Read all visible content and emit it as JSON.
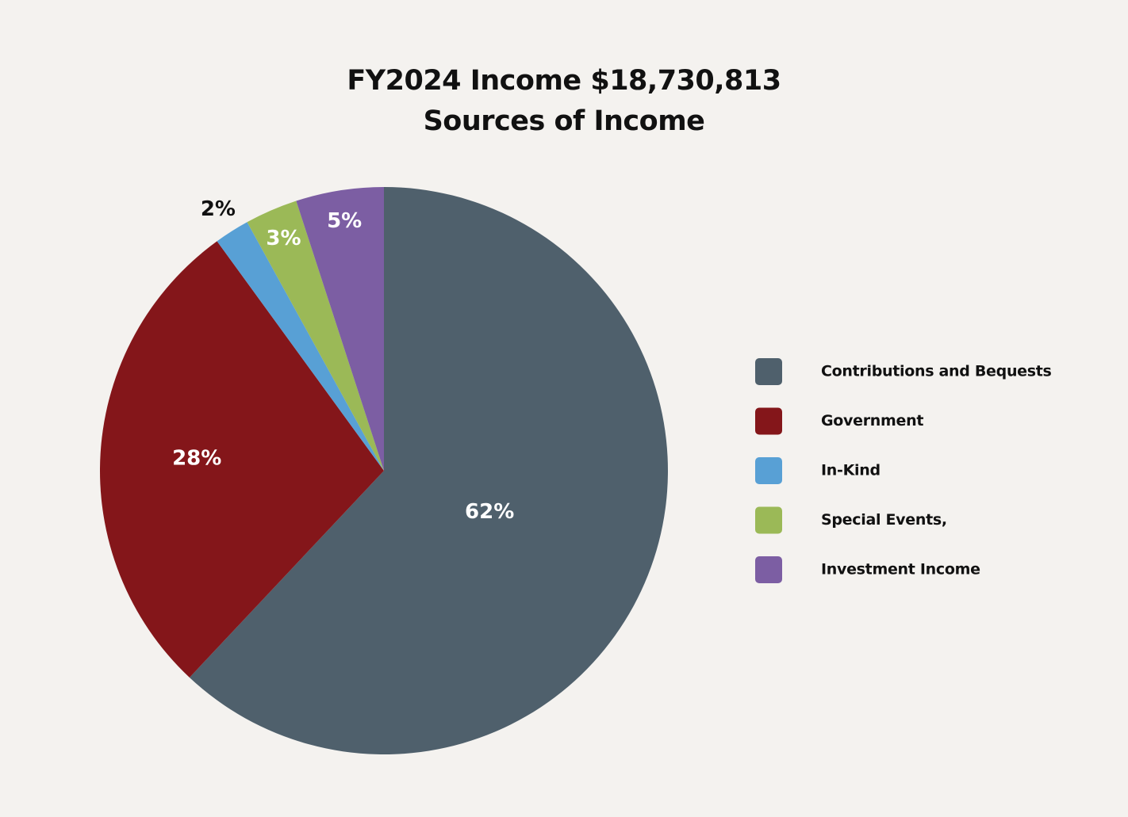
{
  "chart_data": {
    "type": "pie",
    "title": "FY2024  Income  $18,730,813",
    "subtitle": "Sources of Income",
    "categories": [
      "Contributions and Bequests",
      "Government",
      "In-Kind",
      "Special Events,",
      "Investment Income"
    ],
    "values": [
      62,
      28,
      2,
      3,
      5
    ],
    "value_labels": [
      "62%",
      "28%",
      "2%",
      "3%",
      "5%"
    ],
    "colors": [
      "#4f606c",
      "#84161a",
      "#58a0d5",
      "#9bb957",
      "#7c5ea3"
    ],
    "legend": "right"
  }
}
